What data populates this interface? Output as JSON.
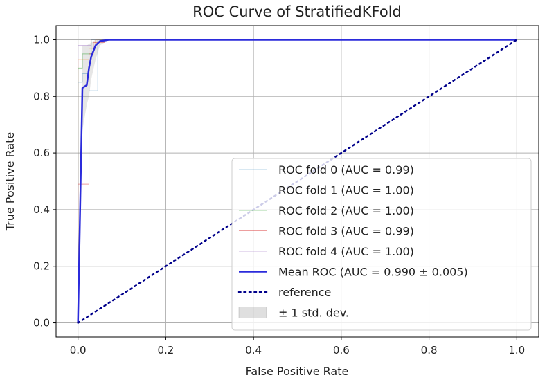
{
  "chart_data": {
    "type": "line",
    "title": "ROC Curve of StratifiedKFold",
    "xlabel": "False Positive Rate",
    "ylabel": "True Positive Rate",
    "xlim": [
      -0.05,
      1.05
    ],
    "ylim": [
      -0.05,
      1.05
    ],
    "grid": true,
    "legend_position": "lower-right",
    "x_ticks": [
      0.0,
      0.2,
      0.4,
      0.6,
      0.8,
      1.0
    ],
    "y_ticks": [
      0.0,
      0.2,
      0.4,
      0.6,
      0.8,
      1.0
    ],
    "x_tick_labels": [
      "0.0",
      "0.2",
      "0.4",
      "0.6",
      "0.8",
      "1.0"
    ],
    "y_tick_labels": [
      "0.0",
      "0.2",
      "0.4",
      "0.6",
      "0.8",
      "1.0"
    ],
    "series": [
      {
        "name": "ROC fold 0 (AUC = 0.99)",
        "color": "#1f77b4",
        "opacity": 0.35,
        "width": 1,
        "style": "solid",
        "x": [
          0.0,
          0.0,
          0.01,
          0.01,
          0.025,
          0.025,
          0.045,
          0.045,
          1.0
        ],
        "y": [
          0.0,
          0.85,
          0.85,
          0.88,
          0.88,
          0.82,
          0.82,
          1.0,
          1.0
        ]
      },
      {
        "name": "ROC fold 1 (AUC = 1.00)",
        "color": "#ff7f0e",
        "opacity": 0.45,
        "width": 1,
        "style": "solid",
        "x": [
          0.0,
          0.0,
          0.025,
          0.025,
          0.04,
          0.04,
          1.0
        ],
        "y": [
          0.0,
          0.93,
          0.93,
          0.97,
          0.97,
          1.0,
          1.0
        ]
      },
      {
        "name": "ROC fold 2 (AUC = 1.00)",
        "color": "#2ca02c",
        "opacity": 0.45,
        "width": 1,
        "style": "solid",
        "x": [
          0.0,
          0.0,
          0.01,
          0.01,
          0.03,
          0.03,
          1.0
        ],
        "y": [
          0.0,
          0.9,
          0.9,
          0.95,
          0.95,
          1.0,
          1.0
        ]
      },
      {
        "name": "ROC fold 3 (AUC = 0.99)",
        "color": "#d62728",
        "opacity": 0.45,
        "width": 1,
        "style": "solid",
        "x": [
          0.0,
          0.0,
          0.025,
          0.025,
          0.035,
          0.035,
          0.06,
          0.06,
          1.0
        ],
        "y": [
          0.0,
          0.49,
          0.49,
          0.95,
          0.95,
          0.99,
          0.99,
          1.0,
          1.0
        ]
      },
      {
        "name": "ROC fold 4 (AUC = 1.00)",
        "color": "#9467bd",
        "opacity": 0.45,
        "width": 1,
        "style": "solid",
        "x": [
          0.0,
          0.0,
          0.03,
          0.03,
          1.0
        ],
        "y": [
          0.0,
          0.98,
          0.98,
          1.0,
          1.0
        ]
      },
      {
        "name": "Mean ROC (AUC = 0.990 ± 0.005)",
        "color": "#2b2bdb",
        "opacity": 1,
        "width": 2.5,
        "style": "solid",
        "x": [
          0.0,
          0.01,
          0.02,
          0.025,
          0.03,
          0.04,
          0.05,
          0.07,
          1.0
        ],
        "y": [
          0.0,
          0.83,
          0.84,
          0.9,
          0.94,
          0.98,
          0.995,
          1.0,
          1.0
        ]
      },
      {
        "name": "reference",
        "color": "#00008b",
        "opacity": 1,
        "width": 2.5,
        "style": "dotted",
        "x": [
          0.0,
          1.0
        ],
        "y": [
          0.0,
          1.0
        ]
      }
    ],
    "std_band": {
      "name": "± 1 std. dev.",
      "color": "#808080",
      "opacity": 0.2,
      "x": [
        0.0,
        0.01,
        0.02,
        0.025,
        0.03,
        0.04,
        0.05,
        0.07,
        1.0
      ],
      "upper": [
        0.0,
        0.98,
        0.98,
        0.985,
        0.99,
        1.0,
        1.0,
        1.0,
        1.0
      ],
      "lower": [
        0.0,
        0.68,
        0.77,
        0.8,
        0.86,
        0.93,
        0.98,
        1.0,
        1.0
      ]
    },
    "legend": [
      "ROC fold 0 (AUC = 0.99)",
      "ROC fold 1 (AUC = 1.00)",
      "ROC fold 2 (AUC = 1.00)",
      "ROC fold 3 (AUC = 0.99)",
      "ROC fold 4 (AUC = 1.00)",
      "Mean ROC (AUC = 0.990 ± 0.005)",
      "reference",
      "± 1 std. dev."
    ]
  }
}
